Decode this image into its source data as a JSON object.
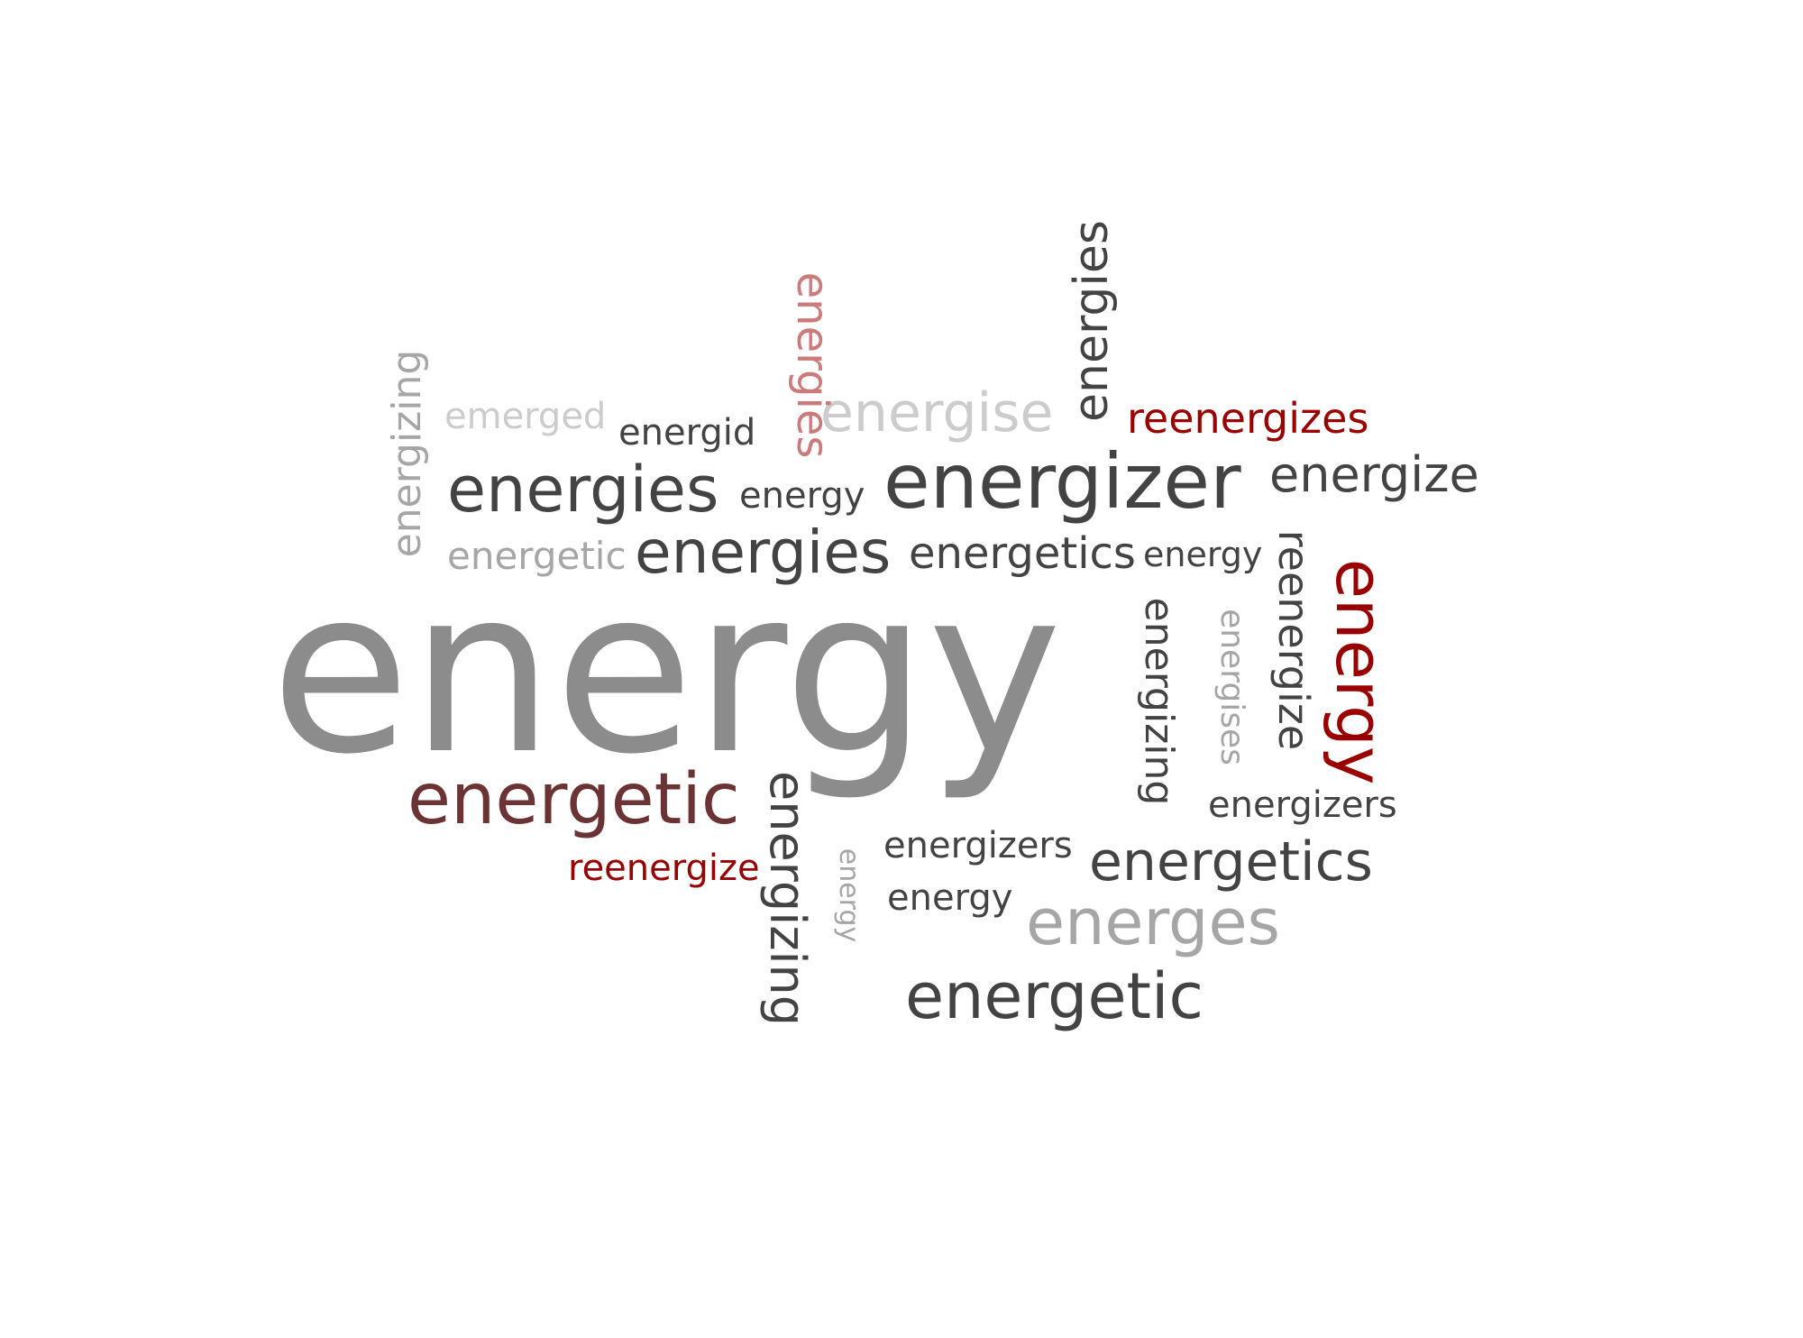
{
  "colors": {
    "dark": "#434343",
    "mid": "#8c8c8c",
    "light": "#a6a6a6",
    "pale": "#cccccc",
    "red": "#990000",
    "pink": "#cc7a7a",
    "brown": "#6b3333"
  },
  "words": [
    "energy",
    "energizer",
    "energetic",
    "energies",
    "energies",
    "energies",
    "energies",
    "energise",
    "reenergizes",
    "energize",
    "energy",
    "reenergize",
    "energizing",
    "energises",
    "energizing",
    "emerged",
    "energid",
    "energy",
    "energetic",
    "energetics",
    "energy",
    "energizers",
    "energetics",
    "energizers",
    "reenergize",
    "energy",
    "energizing",
    "energy",
    "energes",
    "energetic"
  ]
}
